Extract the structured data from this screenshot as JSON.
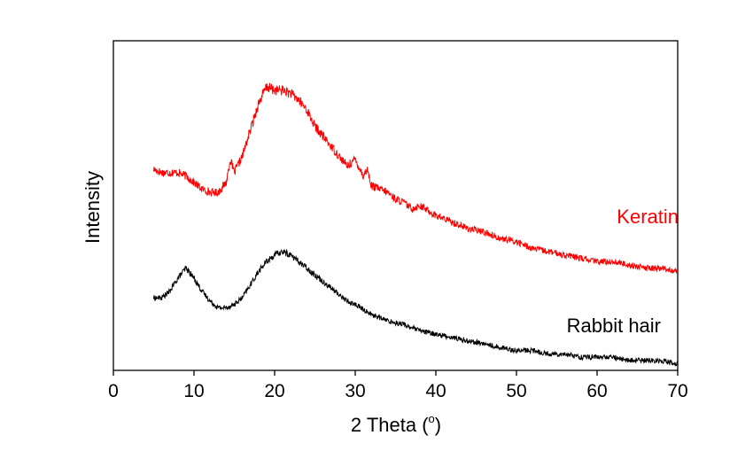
{
  "chart_data": {
    "type": "line",
    "xlabel": "2 Theta (",
    "xlabel_degree": "o",
    "xlabel_close": ")",
    "ylabel": "Intensity",
    "xlim": [
      0,
      70
    ],
    "ylim": [
      0,
      1
    ],
    "y_ticks_shown": false,
    "x_ticks": [
      0,
      10,
      20,
      30,
      40,
      50,
      60,
      70
    ],
    "grid": false,
    "series": [
      {
        "name": "Keratin",
        "color": "#ff0000",
        "x": [
          5,
          6,
          7,
          8,
          9,
          10,
          11,
          12,
          13,
          14,
          14.5,
          15,
          16,
          17,
          18,
          19,
          20,
          21,
          22,
          23,
          24,
          25,
          26,
          27,
          28,
          29,
          30,
          31,
          31.5,
          32,
          33,
          34,
          35,
          36,
          37,
          38,
          40,
          42,
          44,
          46,
          48,
          50,
          52,
          54,
          56,
          58,
          60,
          62,
          64,
          66,
          68,
          70
        ],
        "y": [
          0.61,
          0.6,
          0.6,
          0.6,
          0.59,
          0.57,
          0.55,
          0.54,
          0.54,
          0.57,
          0.64,
          0.6,
          0.65,
          0.73,
          0.81,
          0.86,
          0.85,
          0.85,
          0.84,
          0.82,
          0.79,
          0.74,
          0.71,
          0.68,
          0.65,
          0.62,
          0.64,
          0.59,
          0.61,
          0.56,
          0.55,
          0.54,
          0.52,
          0.51,
          0.49,
          0.5,
          0.47,
          0.45,
          0.43,
          0.42,
          0.4,
          0.39,
          0.37,
          0.36,
          0.35,
          0.34,
          0.33,
          0.33,
          0.32,
          0.31,
          0.31,
          0.3
        ]
      },
      {
        "name": "Rabbit hair",
        "color": "#000000",
        "x": [
          5,
          6,
          7,
          8,
          9,
          10,
          11,
          12,
          13,
          14,
          15,
          16,
          17,
          18,
          19,
          20,
          21,
          22,
          23,
          24,
          25,
          26,
          27,
          28,
          29,
          30,
          32,
          34,
          36,
          38,
          40,
          42,
          44,
          46,
          48,
          50,
          52,
          54,
          56,
          58,
          60,
          62,
          64,
          66,
          68,
          70
        ],
        "y": [
          0.22,
          0.22,
          0.24,
          0.28,
          0.31,
          0.28,
          0.24,
          0.21,
          0.19,
          0.19,
          0.2,
          0.22,
          0.26,
          0.3,
          0.33,
          0.35,
          0.36,
          0.35,
          0.33,
          0.31,
          0.29,
          0.27,
          0.25,
          0.23,
          0.21,
          0.2,
          0.17,
          0.15,
          0.14,
          0.12,
          0.11,
          0.1,
          0.09,
          0.08,
          0.07,
          0.06,
          0.06,
          0.05,
          0.05,
          0.04,
          0.04,
          0.04,
          0.03,
          0.03,
          0.03,
          0.02
        ]
      }
    ]
  }
}
